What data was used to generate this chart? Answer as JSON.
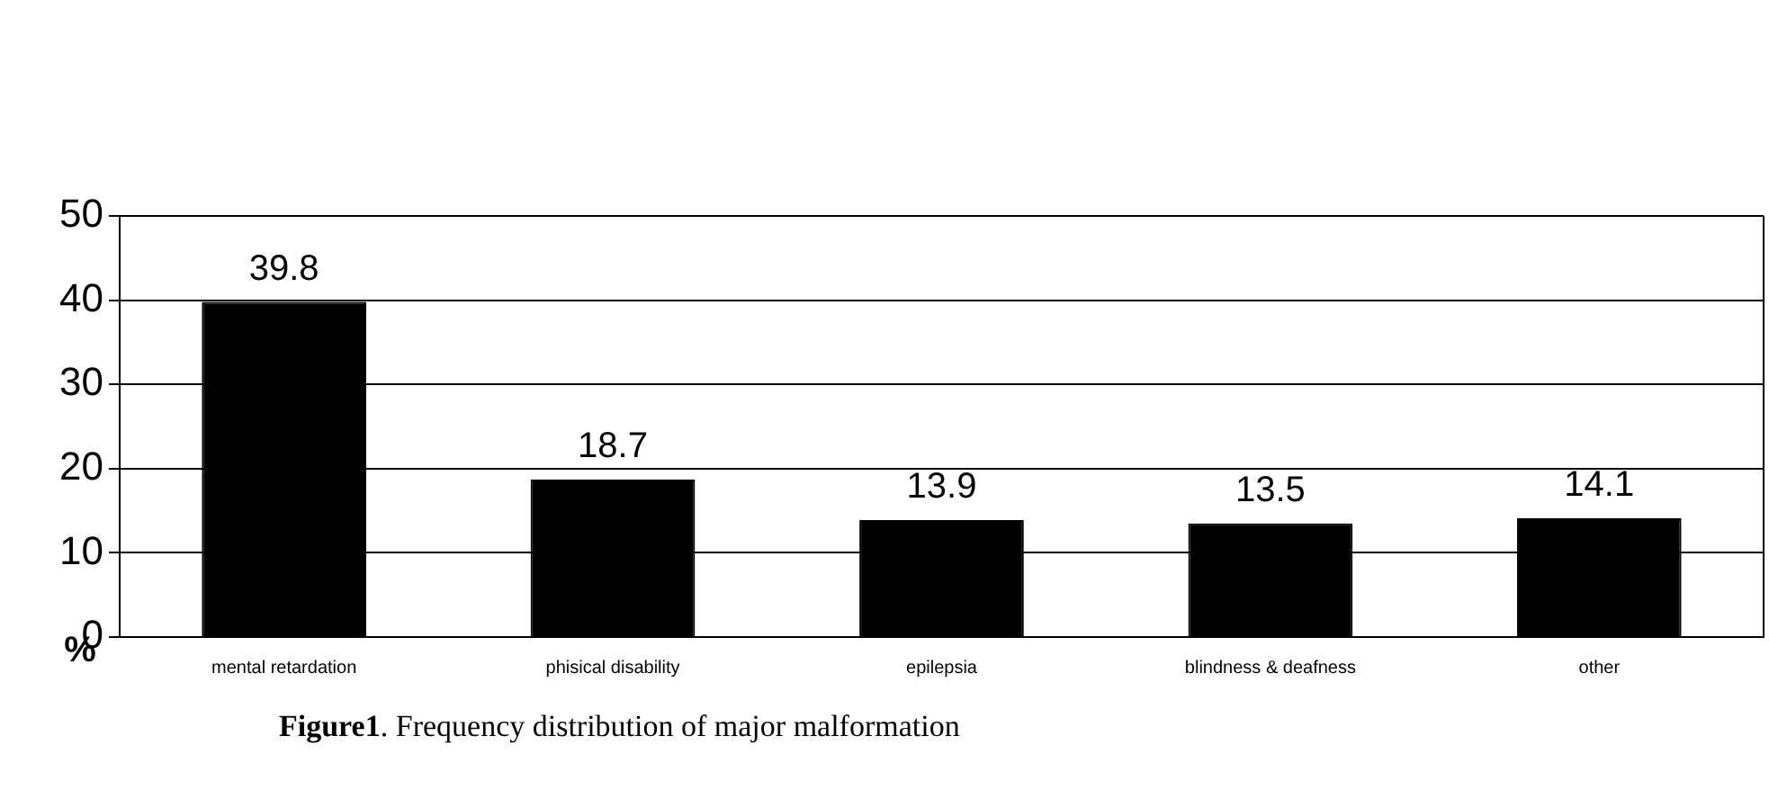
{
  "chart_data": {
    "type": "bar",
    "categories": [
      "mental retardation",
      "phisical disability",
      "epilepsia",
      "blindness & deafness",
      "other"
    ],
    "values": [
      39.8,
      18.7,
      13.9,
      13.5,
      14.1
    ],
    "color": "#000000",
    "ylim": [
      0,
      50
    ],
    "yticks": [
      0,
      10,
      20,
      30,
      40,
      50
    ],
    "grid": "y",
    "data_labels": true,
    "ylabel": "%",
    "annotations": [
      "Figure1. Frequency distribution of major malformation"
    ]
  }
}
